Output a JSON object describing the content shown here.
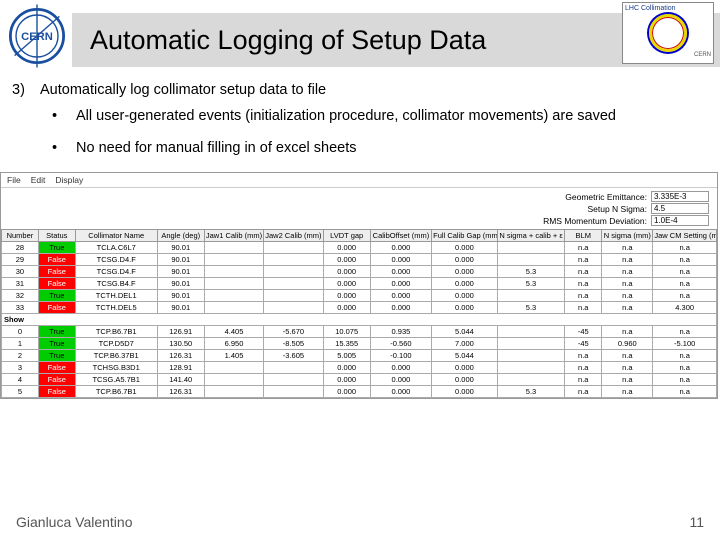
{
  "header": {
    "title": "Automatic Logging of Setup Data",
    "lhc_label": "LHC Collimation",
    "lhc_cern": "CERN"
  },
  "body": {
    "num": "3)",
    "line1": "Automatically log collimator setup data to file",
    "b1": "All user-generated events (initialization procedure, collimator movements) are saved",
    "b2": "No need for manual filling in of excel sheets"
  },
  "menu": {
    "file": "File",
    "edit": "Edit",
    "display": "Display"
  },
  "params": {
    "p1_label": "Geometric Emittance:",
    "p1_val": "3.335E-3",
    "p2_label": "Setup N Sigma:",
    "p2_val": "4.5",
    "p3_label": "RMS Momentum Deviation:",
    "p3_val": "1.0E-4"
  },
  "table": {
    "columns": [
      "Number",
      "Status",
      "Collimator Name",
      "Angle (deg)",
      "Jaw1 Calib (mm)",
      "Jaw2 Calib (mm)",
      "LVDT gap",
      "CalibOffset (mm)",
      "Full Calib Gap (mm)",
      "N sigma + calib + ε",
      "BLM",
      "N sigma (mm)",
      "Jaw CM Setting (mm)"
    ],
    "col_widths": [
      "36px",
      "36px",
      "80px",
      "46px",
      "58px",
      "58px",
      "46px",
      "60px",
      "64px",
      "66px",
      "36px",
      "50px",
      "62px"
    ],
    "rows_top": [
      {
        "n": "28",
        "st": "True",
        "stc": "st-green",
        "name": "TCLA.C6L7",
        "ang": "90.01",
        "j1": "",
        "j2": "",
        "g": "0.000",
        "co": "0.000",
        "fg": "0.000",
        "ns": "",
        "blm": "n.a",
        "sg": "n.a",
        "cm": "n.a"
      },
      {
        "n": "29",
        "st": "False",
        "stc": "st-red",
        "name": "TCSG.D4.F",
        "ang": "90.01",
        "j1": "",
        "j2": "",
        "g": "0.000",
        "co": "0.000",
        "fg": "0.000",
        "ns": "",
        "blm": "n.a",
        "sg": "n.a",
        "cm": "n.a"
      },
      {
        "n": "30",
        "st": "False",
        "stc": "st-red",
        "name": "TCSG.D4.F",
        "ang": "90.01",
        "j1": "",
        "j2": "",
        "g": "0.000",
        "co": "0.000",
        "fg": "0.000",
        "ns": "5.3",
        "blm": "n.a",
        "sg": "n.a",
        "cm": "n.a"
      },
      {
        "n": "31",
        "st": "False",
        "stc": "st-red",
        "name": "TCSG.B4.F",
        "ang": "90.01",
        "j1": "",
        "j2": "",
        "g": "0.000",
        "co": "0.000",
        "fg": "0.000",
        "ns": "5.3",
        "blm": "n.a",
        "sg": "n.a",
        "cm": "n.a"
      },
      {
        "n": "32",
        "st": "True",
        "stc": "st-green",
        "name": "TCTH.DEL1",
        "ang": "90.01",
        "j1": "",
        "j2": "",
        "g": "0.000",
        "co": "0.000",
        "fg": "0.000",
        "ns": "",
        "blm": "n.a",
        "sg": "n.a",
        "cm": "n.a"
      },
      {
        "n": "33",
        "st": "False",
        "stc": "st-red",
        "name": "TCTH.DEL5",
        "ang": "90.01",
        "j1": "",
        "j2": "",
        "g": "0.000",
        "co": "0.000",
        "fg": "0.000",
        "ns": "5.3",
        "blm": "n.a",
        "sg": "n.a",
        "cm": "4.300"
      }
    ],
    "show_label": "Show",
    "rows_bot": [
      {
        "n": "0",
        "st": "True",
        "stc": "st-green",
        "name": "TCP.B6.7B1",
        "ang": "126.91",
        "j1": "4.405",
        "j2": "-5.670",
        "g": "10.075",
        "co": "0.935",
        "fg": "5.044",
        "ns": "",
        "blm": "-45",
        "sg": "n.a",
        "cm": "n.a"
      },
      {
        "n": "1",
        "st": "True",
        "stc": "st-green",
        "name": "TCP.D5D7",
        "ang": "130.50",
        "j1": "6.950",
        "j2": "-8.505",
        "g": "15.355",
        "co": "-0.560",
        "fg": "7.000",
        "ns": "",
        "blm": "-45",
        "sg": "0.960",
        "cm": "-5.100"
      },
      {
        "n": "2",
        "st": "True",
        "stc": "st-green",
        "name": "TCP.B6.37B1",
        "ang": "126.31",
        "j1": "1.405",
        "j2": "-3.605",
        "g": "5.005",
        "co": "-0.100",
        "fg": "5.044",
        "ns": "",
        "blm": "n.a",
        "sg": "n.a",
        "cm": "n.a"
      },
      {
        "n": "3",
        "st": "False",
        "stc": "st-red",
        "name": "TCHSG.B3D1",
        "ang": "128.91",
        "j1": "",
        "j2": "",
        "g": "0.000",
        "co": "0.000",
        "fg": "0.000",
        "ns": "",
        "blm": "n.a",
        "sg": "n.a",
        "cm": "n.a"
      },
      {
        "n": "4",
        "st": "False",
        "stc": "st-red",
        "name": "TCSG.A5.7B1",
        "ang": "141.40",
        "j1": "",
        "j2": "",
        "g": "0.000",
        "co": "0.000",
        "fg": "0.000",
        "ns": "",
        "blm": "n.a",
        "sg": "n.a",
        "cm": "n.a"
      },
      {
        "n": "5",
        "st": "False",
        "stc": "st-red",
        "name": "TCP.B6.7B1",
        "ang": "126.31",
        "j1": "",
        "j2": "",
        "g": "0.000",
        "co": "0.000",
        "fg": "0.000",
        "ns": "5.3",
        "blm": "n.a",
        "sg": "n.a",
        "cm": "n.a"
      }
    ]
  },
  "footer": {
    "author": "Gianluca Valentino",
    "page": "11"
  },
  "colors": {
    "banner": "#d9d9d9"
  }
}
